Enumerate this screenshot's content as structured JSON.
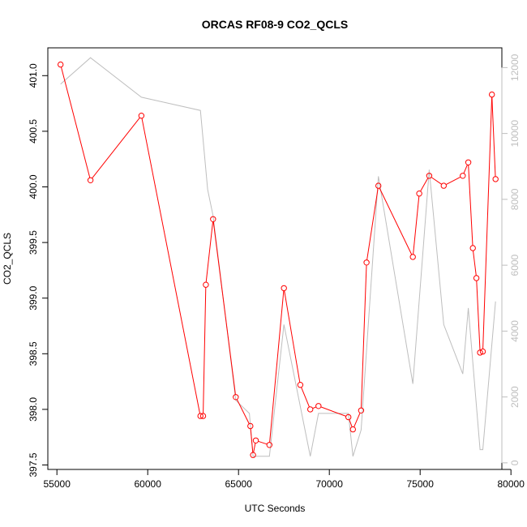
{
  "chart_data": {
    "type": "line",
    "title": "ORCAS RF08-9 CO2_QCLS",
    "xlabel": "UTC Seconds",
    "ylabel": "CO2_QCLS",
    "xlim": [
      54500,
      79500
    ],
    "ylim": [
      397.46,
      401.25
    ],
    "x_ticks": [
      55000,
      60000,
      65000,
      70000,
      75000,
      80000
    ],
    "y_ticks": [
      397.5,
      398.0,
      398.5,
      399.0,
      399.5,
      400.0,
      400.5,
      401.0
    ],
    "y_tick_labels": [
      "397.5",
      "398.0",
      "398.5",
      "399.0",
      "399.5",
      "400.0",
      "400.5",
      "401.0"
    ],
    "y2lim": [
      -200,
      12600
    ],
    "y2_ticks": [
      0,
      2000,
      4000,
      6000,
      8000,
      10000,
      12000
    ],
    "grid": false,
    "colors": {
      "primary": "#ff0000",
      "secondary": "#bebebe",
      "axis": "#000000"
    },
    "series": [
      {
        "axis": "left",
        "style": "line+open-circles",
        "color": "#ff0000",
        "x": [
          55200,
          56850,
          59650,
          62900,
          63050,
          63200,
          63600,
          64850,
          65650,
          65800,
          65950,
          66700,
          67500,
          68400,
          68950,
          69400,
          71050,
          71300,
          71750,
          72050,
          72700,
          74600,
          74950,
          75500,
          76300,
          77350,
          77650,
          77900,
          78100,
          78300,
          78450,
          78950,
          79150
        ],
        "y": [
          401.1,
          400.06,
          400.64,
          397.94,
          397.94,
          399.12,
          399.71,
          398.11,
          397.85,
          397.59,
          397.72,
          397.68,
          399.09,
          398.22,
          398.0,
          398.03,
          397.93,
          397.82,
          397.99,
          399.32,
          400.01,
          399.37,
          399.94,
          400.1,
          400.01,
          400.1,
          400.22,
          399.45,
          399.18,
          398.51,
          398.52,
          400.83,
          400.07
        ]
      },
      {
        "axis": "right",
        "style": "line",
        "color": "#bebebe",
        "x": [
          55200,
          56850,
          59650,
          62900,
          63300,
          63600,
          64850,
          65600,
          65800,
          66700,
          67500,
          68950,
          69400,
          71050,
          71300,
          71750,
          72700,
          74600,
          75500,
          76300,
          77350,
          77650,
          78300,
          78450,
          79150
        ],
        "y": [
          11500,
          12300,
          11100,
          10700,
          8300,
          7500,
          1900,
          1500,
          200,
          200,
          4200,
          200,
          1500,
          1500,
          200,
          1000,
          8700,
          2400,
          8900,
          4200,
          2700,
          4700,
          400,
          400,
          4900
        ]
      }
    ]
  }
}
